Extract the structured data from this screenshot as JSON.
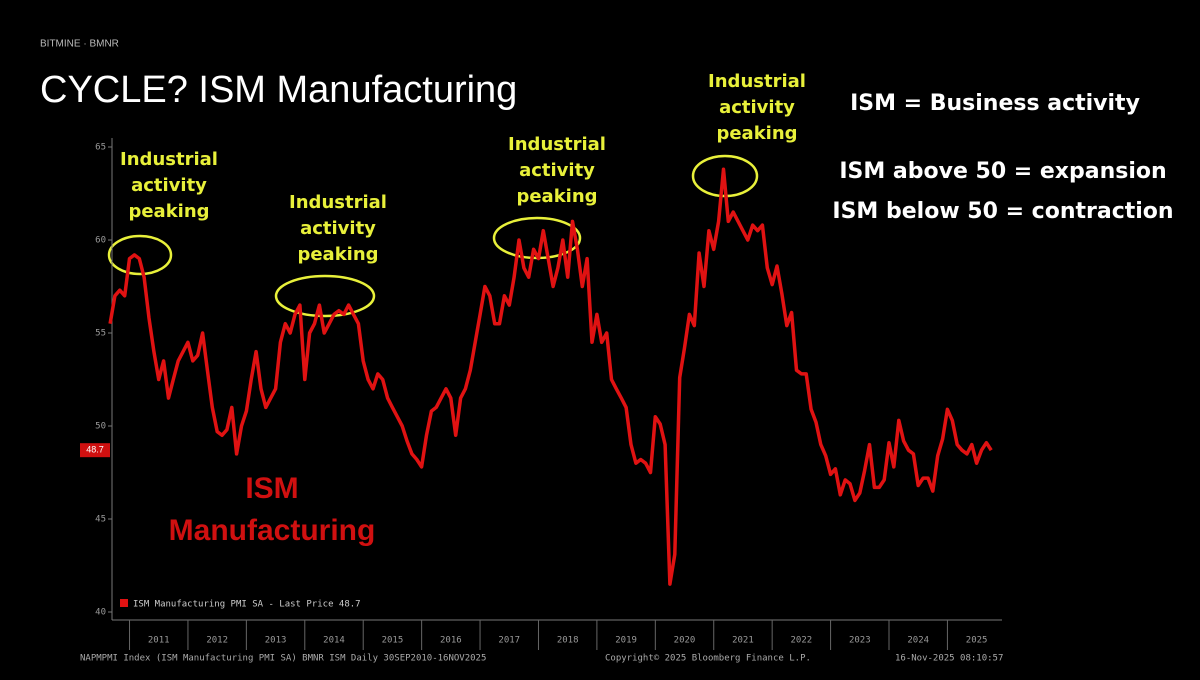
{
  "chart_data": {
    "type": "line",
    "brand": "BITMINE · BMNR",
    "title": "CYCLE? ISM Manufacturing",
    "notes": [
      "ISM = Business activity",
      "ISM above 50 = expansion",
      "ISM below 50 = contraction"
    ],
    "annotations": [
      [
        "Industrial",
        "activity",
        "peaking"
      ],
      [
        "Industrial",
        "activity",
        "peaking"
      ],
      [
        "Industrial",
        "activity",
        "peaking"
      ],
      [
        "Industrial",
        "activity",
        "peaking"
      ]
    ],
    "series_label": [
      "ISM",
      "Manufacturing"
    ],
    "legend": "ISM Manufacturing PMI SA - Last Price 48.7",
    "last_price": 48.7,
    "footer_left": "NAPMPMI Index (ISM Manufacturing PMI SA) BMNR ISM Daily 30SEP2010-16NOV2025",
    "footer_center": "Copyright© 2025 Bloomberg Finance L.P.",
    "footer_right": "16-Nov-2025 08:10:57",
    "color": "#e01212",
    "xlim": [
      2010.7,
      2025.9
    ],
    "xticks": [
      2011,
      2012,
      2013,
      2014,
      2015,
      2016,
      2017,
      2018,
      2019,
      2020,
      2021,
      2022,
      2023,
      2024,
      2025
    ],
    "ylim": [
      40,
      65
    ],
    "yticks": [
      40,
      45,
      50,
      55,
      60,
      65
    ],
    "x": [
      2010.667,
      2010.75,
      2010.833,
      2010.917,
      2011,
      2011.083,
      2011.167,
      2011.25,
      2011.333,
      2011.417,
      2011.5,
      2011.583,
      2011.667,
      2011.75,
      2011.833,
      2011.917,
      2012,
      2012.083,
      2012.167,
      2012.25,
      2012.333,
      2012.417,
      2012.5,
      2012.583,
      2012.667,
      2012.75,
      2012.833,
      2012.917,
      2013,
      2013.083,
      2013.167,
      2013.25,
      2013.333,
      2013.417,
      2013.5,
      2013.583,
      2013.667,
      2013.75,
      2013.833,
      2013.917,
      2014,
      2014.083,
      2014.167,
      2014.25,
      2014.333,
      2014.417,
      2014.5,
      2014.583,
      2014.667,
      2014.75,
      2014.833,
      2014.917,
      2015,
      2015.083,
      2015.167,
      2015.25,
      2015.333,
      2015.417,
      2015.5,
      2015.583,
      2015.667,
      2015.75,
      2015.833,
      2015.917,
      2016,
      2016.083,
      2016.167,
      2016.25,
      2016.333,
      2016.417,
      2016.5,
      2016.583,
      2016.667,
      2016.75,
      2016.833,
      2016.917,
      2017,
      2017.083,
      2017.167,
      2017.25,
      2017.333,
      2017.417,
      2017.5,
      2017.583,
      2017.667,
      2017.75,
      2017.833,
      2017.917,
      2018,
      2018.083,
      2018.167,
      2018.25,
      2018.333,
      2018.417,
      2018.5,
      2018.583,
      2018.667,
      2018.75,
      2018.833,
      2018.917,
      2019,
      2019.083,
      2019.167,
      2019.25,
      2019.333,
      2019.417,
      2019.5,
      2019.583,
      2019.667,
      2019.75,
      2019.833,
      2019.917,
      2020,
      2020.083,
      2020.167,
      2020.25,
      2020.333,
      2020.417,
      2020.5,
      2020.583,
      2020.667,
      2020.75,
      2020.833,
      2020.917,
      2021,
      2021.083,
      2021.167,
      2021.25,
      2021.333,
      2021.417,
      2021.5,
      2021.583,
      2021.667,
      2021.75,
      2021.833,
      2021.917,
      2022,
      2022.083,
      2022.167,
      2022.25,
      2022.333,
      2022.417,
      2022.5,
      2022.583,
      2022.667,
      2022.75,
      2022.833,
      2022.917,
      2023,
      2023.083,
      2023.167,
      2023.25,
      2023.333,
      2023.417,
      2023.5,
      2023.583,
      2023.667,
      2023.75,
      2023.833,
      2023.917,
      2024,
      2024.083,
      2024.167,
      2024.25,
      2024.333,
      2024.417,
      2024.5,
      2024.583,
      2024.667,
      2024.75,
      2024.833,
      2024.917,
      2025,
      2025.083,
      2025.167,
      2025.25,
      2025.333,
      2025.417,
      2025.5,
      2025.583,
      2025.667,
      2025.75
    ],
    "values": [
      55.5,
      57,
      57.3,
      57,
      59,
      59.2,
      59,
      58,
      55.8,
      54,
      52.5,
      53.5,
      51.5,
      52.5,
      53.5,
      54,
      54.5,
      53.5,
      53.8,
      55,
      53,
      51,
      49.7,
      49.5,
      49.8,
      51,
      48.5,
      50,
      50.8,
      52.5,
      54,
      52,
      51,
      51.5,
      52,
      54.5,
      55.5,
      55,
      56,
      56.5,
      52.5,
      55,
      55.5,
      56.5,
      55,
      55.5,
      56,
      56.2,
      56,
      56.5,
      56,
      55.5,
      53.5,
      52.5,
      52,
      52.8,
      52.5,
      51.5,
      51,
      50.5,
      50,
      49.2,
      48.5,
      48.2,
      47.8,
      49.5,
      50.8,
      51,
      51.5,
      52,
      51.5,
      49.5,
      51.5,
      52,
      53,
      54.5,
      56,
      57.5,
      57,
      55.5,
      55.5,
      57,
      56.5,
      58,
      60,
      58.5,
      58,
      59.5,
      59,
      60.5,
      59,
      57.5,
      58.5,
      60,
      58,
      61,
      59.5,
      57.5,
      59,
      54.5,
      56,
      54.5,
      55,
      52.5,
      52,
      51.5,
      51,
      49,
      48,
      48.2,
      48,
      47.5,
      50.5,
      50.1,
      49,
      41.5,
      43.1,
      52.6,
      54.2,
      56,
      55.4,
      59.3,
      57.5,
      60.5,
      59.5,
      61,
      63.8,
      61,
      61.5,
      61,
      60.5,
      60,
      60.8,
      60.5,
      60.8,
      58.5,
      57.6,
      58.6,
      57.1,
      55.4,
      56.1,
      53,
      52.8,
      52.8,
      50.9,
      50.2,
      49,
      48.4,
      47.4,
      47.7,
      46.3,
      47.1,
      46.9,
      46,
      46.4,
      47.6,
      49,
      46.7,
      46.7,
      47.1,
      49.1,
      47.8,
      50.3,
      49.2,
      48.7,
      48.5,
      46.8,
      47.2,
      47.2,
      46.5,
      48.4,
      49.3,
      50.9,
      50.3,
      49,
      48.7,
      48.5,
      49,
      48,
      48.7,
      49.1,
      48.7
    ]
  }
}
